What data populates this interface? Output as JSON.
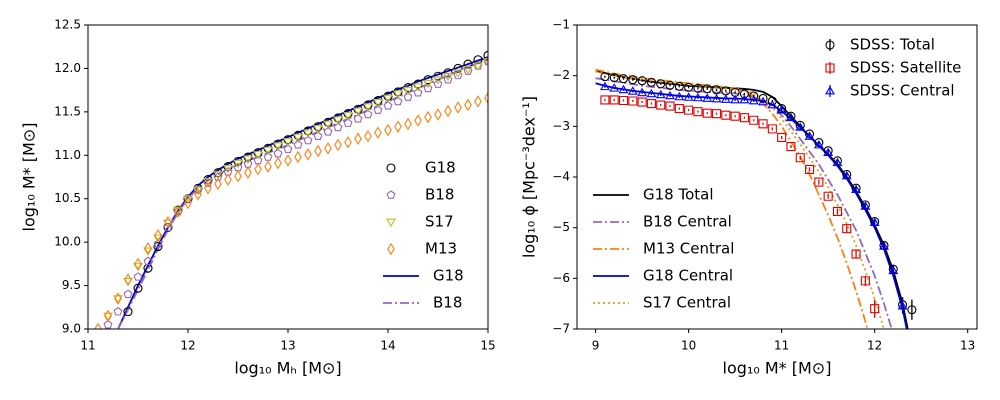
{
  "chart_data": [
    {
      "type": "line",
      "xlabel": "log₁₀ Mₕ [M⊙]",
      "ylabel": "log₁₀ M* [M⊙]",
      "xlim": [
        11,
        15
      ],
      "ylim": [
        9,
        12.5
      ],
      "xticks": [
        11,
        12,
        13,
        14,
        15
      ],
      "yticks": [
        {
          "value": 9,
          "label": "9.0"
        },
        9.5,
        {
          "value": 10,
          "label": "10.0"
        },
        10.5,
        {
          "value": 11,
          "label": "11.0"
        },
        11.5,
        {
          "value": 12,
          "label": "12.0"
        },
        12.5
      ],
      "legend": "lower right",
      "x": [
        11.1,
        11.2,
        11.3,
        11.4,
        11.5,
        11.6,
        11.7,
        11.8,
        11.9,
        12.0,
        12.1,
        12.2,
        12.3,
        12.4,
        12.5,
        12.6,
        12.7,
        12.8,
        12.9,
        13.0,
        13.1,
        13.2,
        13.3,
        13.4,
        13.5,
        13.6,
        13.7,
        13.8,
        13.9,
        14.0,
        14.1,
        14.2,
        14.3,
        14.4,
        14.5,
        14.6,
        14.7,
        14.8,
        14.9,
        15.0
      ],
      "series": [
        {
          "name": "G18",
          "color": "#000000",
          "marker": "circle",
          "values": [
            null,
            null,
            null,
            9.2,
            9.47,
            9.7,
            9.95,
            10.17,
            10.37,
            10.5,
            10.62,
            10.72,
            10.8,
            10.87,
            10.93,
            10.98,
            11.03,
            11.08,
            11.13,
            11.18,
            11.23,
            11.28,
            11.33,
            11.38,
            11.43,
            11.48,
            11.53,
            11.58,
            11.63,
            11.68,
            11.73,
            11.78,
            11.82,
            11.87,
            11.91,
            11.95,
            12.0,
            12.05,
            12.1,
            12.15
          ]
        },
        {
          "name": "B18",
          "color": "#9467bd",
          "marker": "pentagon",
          "values": [
            null,
            9.05,
            9.2,
            9.4,
            9.6,
            9.78,
            9.98,
            10.17,
            10.35,
            10.5,
            10.6,
            10.68,
            10.75,
            10.81,
            10.86,
            10.9,
            10.94,
            10.98,
            11.02,
            11.07,
            11.12,
            11.17,
            11.22,
            11.27,
            11.32,
            11.37,
            11.42,
            11.47,
            11.52,
            11.57,
            11.62,
            11.67,
            11.72,
            11.77,
            11.82,
            11.87,
            11.92,
            11.97,
            12.03,
            12.08
          ]
        },
        {
          "name": "S17",
          "color": "#bcbd22",
          "marker": "triangle-down",
          "values": [
            null,
            9.15,
            9.35,
            9.55,
            9.72,
            9.9,
            10.05,
            10.22,
            10.37,
            10.5,
            10.6,
            10.7,
            10.78,
            10.85,
            10.91,
            10.96,
            11.01,
            11.06,
            11.11,
            11.16,
            11.21,
            11.26,
            11.31,
            11.36,
            11.41,
            11.46,
            11.51,
            11.56,
            11.61,
            11.66,
            11.71,
            11.75,
            11.79,
            11.83,
            11.87,
            11.91,
            11.95,
            11.99,
            12.03,
            12.08
          ]
        },
        {
          "name": "M13",
          "color": "#ff7f0e",
          "marker": "diamond",
          "values": [
            9.0,
            9.15,
            9.35,
            9.57,
            9.75,
            9.93,
            10.08,
            10.23,
            10.35,
            10.45,
            10.55,
            10.62,
            10.67,
            10.72,
            10.76,
            10.8,
            10.84,
            10.87,
            10.91,
            10.94,
            10.98,
            11.01,
            11.05,
            11.08,
            11.12,
            11.15,
            11.19,
            11.22,
            11.26,
            11.29,
            11.33,
            11.36,
            11.4,
            11.44,
            11.47,
            11.51,
            11.55,
            11.58,
            11.62,
            11.66
          ]
        },
        {
          "name": "G18",
          "color": "#0000cd",
          "linestyle": "solid",
          "values": [
            null,
            null,
            9.0,
            9.25,
            9.5,
            9.73,
            9.96,
            10.17,
            10.36,
            10.52,
            10.65,
            10.75,
            10.83,
            10.9,
            10.96,
            11.01,
            11.06,
            11.11,
            11.16,
            11.21,
            11.26,
            11.31,
            11.36,
            11.41,
            11.46,
            11.51,
            11.56,
            11.61,
            11.66,
            11.71,
            11.76,
            11.8,
            11.85,
            11.89,
            11.93,
            11.97,
            12.01,
            12.05,
            12.09,
            12.13
          ]
        },
        {
          "name": "B18",
          "color": "#9467bd",
          "linestyle": "dashdot",
          "values": [
            null,
            null,
            9.0,
            9.22,
            9.45,
            9.68,
            9.92,
            10.14,
            10.34,
            10.5,
            10.62,
            10.71,
            10.78,
            10.84,
            10.89,
            10.94,
            10.98,
            11.03,
            11.07,
            11.12,
            11.17,
            11.22,
            11.27,
            11.32,
            11.37,
            11.42,
            11.47,
            11.52,
            11.57,
            11.62,
            11.67,
            11.72,
            11.77,
            11.82,
            11.87,
            11.92,
            11.97,
            12.02,
            12.06,
            12.1
          ]
        }
      ]
    },
    {
      "type": "line",
      "xlabel": "log₁₀ M* [M⊙]",
      "ylabel": "log₁₀ ϕ [Mpc⁻³dex⁻¹]",
      "xlim": [
        8.8,
        13.1
      ],
      "ylim": [
        -7,
        -1
      ],
      "xticks": [
        9,
        10,
        11,
        12,
        13
      ],
      "yticks": [
        {
          "value": -7,
          "label": "−7"
        },
        {
          "value": -6,
          "label": "−6"
        },
        {
          "value": -5,
          "label": "−5"
        },
        {
          "value": -4,
          "label": "−4"
        },
        {
          "value": -3,
          "label": "−3"
        },
        {
          "value": -2,
          "label": "−2"
        },
        {
          "value": -1,
          "label": "−1"
        }
      ],
      "x": [
        9.0,
        9.1,
        9.2,
        9.3,
        9.4,
        9.5,
        9.6,
        9.7,
        9.8,
        9.9,
        10.0,
        10.1,
        10.2,
        10.3,
        10.4,
        10.5,
        10.6,
        10.7,
        10.8,
        10.9,
        11.0,
        11.1,
        11.2,
        11.3,
        11.4,
        11.5,
        11.6,
        11.7,
        11.8,
        11.9,
        12.0,
        12.1,
        12.2,
        12.3,
        12.4
      ],
      "series": [
        {
          "name": "SDSS: Total",
          "color": "#000000",
          "marker": "circle",
          "legend": "upper right",
          "values": [
            null,
            -2.02,
            -2.04,
            -2.06,
            -2.08,
            -2.1,
            -2.13,
            -2.16,
            -2.19,
            -2.21,
            -2.23,
            -2.25,
            -2.26,
            -2.28,
            -2.3,
            -2.33,
            -2.36,
            -2.4,
            -2.45,
            -2.5,
            -2.65,
            -2.8,
            -2.98,
            -3.15,
            -3.32,
            -3.48,
            -3.68,
            -3.95,
            -4.22,
            -4.55,
            -4.88,
            -5.35,
            -5.82,
            -6.52,
            -6.62
          ],
          "errors": [
            null,
            0.02,
            0.02,
            0.02,
            0.02,
            0.02,
            0.02,
            0.02,
            0.02,
            0.02,
            0.02,
            0.02,
            0.02,
            0.02,
            0.02,
            0.02,
            0.02,
            0.02,
            0.02,
            0.02,
            0.02,
            0.02,
            0.03,
            0.03,
            0.03,
            0.03,
            0.04,
            0.04,
            0.05,
            0.05,
            0.06,
            0.07,
            0.09,
            0.15,
            0.2
          ]
        },
        {
          "name": "SDSS: Satellite",
          "color": "#e00000",
          "marker": "square",
          "legend": "upper right",
          "values": [
            null,
            -2.48,
            -2.48,
            -2.49,
            -2.5,
            -2.52,
            -2.55,
            -2.58,
            -2.6,
            -2.65,
            -2.68,
            -2.71,
            -2.74,
            -2.75,
            -2.78,
            -2.8,
            -2.83,
            -2.88,
            -2.95,
            -3.05,
            -3.22,
            -3.4,
            -3.62,
            -3.85,
            -4.1,
            -4.38,
            -4.68,
            -5.02,
            -5.52,
            -6.05,
            -6.6,
            null,
            null,
            null,
            null
          ],
          "errors": [
            null,
            0.02,
            0.02,
            0.02,
            0.02,
            0.02,
            0.02,
            0.02,
            0.02,
            0.02,
            0.02,
            0.02,
            0.02,
            0.02,
            0.02,
            0.02,
            0.02,
            0.02,
            0.02,
            0.03,
            0.03,
            0.03,
            0.04,
            0.04,
            0.05,
            0.05,
            0.06,
            0.07,
            0.08,
            0.1,
            0.18,
            null,
            null,
            null,
            null
          ]
        },
        {
          "name": "SDSS: Central",
          "color": "#0000ff",
          "marker": "triangle-up",
          "legend": "upper right",
          "values": [
            null,
            -2.22,
            -2.25,
            -2.28,
            -2.31,
            -2.34,
            -2.36,
            -2.38,
            -2.4,
            -2.42,
            -2.43,
            -2.44,
            -2.45,
            -2.46,
            -2.47,
            -2.48,
            -2.48,
            -2.5,
            -2.52,
            -2.58,
            -2.68,
            -2.83,
            -3.02,
            -3.2,
            -3.37,
            -3.52,
            -3.72,
            -3.98,
            -4.25,
            -4.58,
            -4.9,
            -5.37,
            -5.85,
            -6.55,
            null
          ],
          "errors": [
            null,
            0.02,
            0.02,
            0.02,
            0.02,
            0.02,
            0.02,
            0.02,
            0.02,
            0.02,
            0.02,
            0.02,
            0.02,
            0.02,
            0.02,
            0.02,
            0.02,
            0.02,
            0.02,
            0.02,
            0.02,
            0.02,
            0.03,
            0.03,
            0.03,
            0.03,
            0.04,
            0.04,
            0.05,
            0.05,
            0.06,
            0.07,
            0.09,
            0.15,
            null
          ]
        },
        {
          "name": "G18 Total",
          "color": "#000000",
          "linestyle": "solid",
          "legend": "lower left",
          "values": [
            -1.9,
            -1.95,
            -1.99,
            -2.03,
            -2.06,
            -2.09,
            -2.12,
            -2.14,
            -2.16,
            -2.18,
            -2.2,
            -2.21,
            -2.22,
            -2.23,
            -2.24,
            -2.25,
            -2.26,
            -2.28,
            -2.32,
            -2.42,
            -2.6,
            -2.8,
            -3.0,
            -3.2,
            -3.38,
            -3.55,
            -3.75,
            -4.0,
            -4.28,
            -4.6,
            -4.95,
            -5.35,
            -5.85,
            -6.5,
            -7.4
          ]
        },
        {
          "name": "B18 Central",
          "color": "#9467bd",
          "linestyle": "dashdot",
          "legend": "lower left",
          "values": [
            -2.05,
            -2.08,
            -2.11,
            -2.14,
            -2.17,
            -2.2,
            -2.22,
            -2.24,
            -2.26,
            -2.28,
            -2.3,
            -2.31,
            -2.32,
            -2.33,
            -2.34,
            -2.35,
            -2.38,
            -2.42,
            -2.48,
            -2.6,
            -2.78,
            -3.0,
            -3.25,
            -3.5,
            -3.75,
            -4.05,
            -4.35,
            -4.7,
            -5.05,
            -5.5,
            -5.95,
            -6.5,
            -7.1,
            null,
            null
          ]
        },
        {
          "name": "M13 Central",
          "color": "#ff7f0e",
          "linestyle": "dashdot",
          "legend": "lower left",
          "values": [
            -1.88,
            -1.92,
            -1.96,
            -1.99,
            -2.02,
            -2.05,
            -2.07,
            -2.09,
            -2.11,
            -2.13,
            -2.15,
            -2.17,
            -2.19,
            -2.21,
            -2.23,
            -2.25,
            -2.3,
            -2.4,
            -2.55,
            -2.75,
            -3.0,
            -3.3,
            -3.6,
            -3.95,
            -4.35,
            -4.75,
            -5.2,
            -5.7,
            -6.25,
            -6.85,
            -7.5,
            null,
            null,
            null,
            null
          ]
        },
        {
          "name": "G18 Central",
          "color": "#0000cd",
          "linestyle": "solid",
          "legend": "lower left",
          "values": [
            -2.15,
            -2.2,
            -2.24,
            -2.27,
            -2.3,
            -2.32,
            -2.34,
            -2.36,
            -2.38,
            -2.4,
            -2.41,
            -2.42,
            -2.43,
            -2.44,
            -2.45,
            -2.45,
            -2.46,
            -2.48,
            -2.5,
            -2.57,
            -2.7,
            -2.85,
            -3.02,
            -3.2,
            -3.38,
            -3.57,
            -3.78,
            -4.03,
            -4.32,
            -4.65,
            -5.0,
            -5.42,
            -5.95,
            -6.6,
            -7.5
          ]
        },
        {
          "name": "S17 Central",
          "color": "#dba21c",
          "linestyle": "dotted",
          "legend": "lower left",
          "values": [
            -1.92,
            -1.96,
            -2.0,
            -2.03,
            -2.06,
            -2.08,
            -2.1,
            -2.12,
            -2.14,
            -2.16,
            -2.18,
            -2.2,
            -2.22,
            -2.24,
            -2.26,
            -2.28,
            -2.3,
            -2.35,
            -2.45,
            -2.62,
            -2.85,
            -3.1,
            -3.35,
            -3.62,
            -3.9,
            -4.2,
            -4.55,
            -4.92,
            -5.35,
            -5.85,
            -6.4,
            -7.0,
            -7.7,
            null,
            null
          ]
        }
      ]
    }
  ]
}
